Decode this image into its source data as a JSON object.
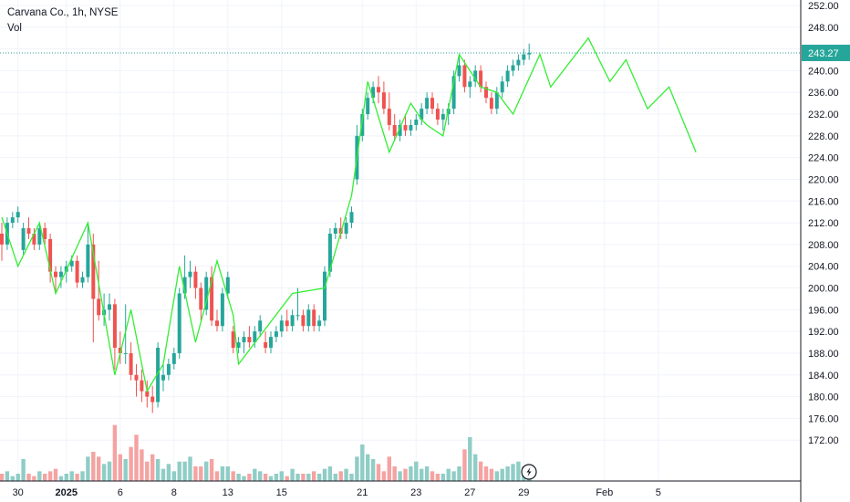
{
  "header": {
    "symbol_line": "Carvana Co., 1h, NYSE",
    "volume_label": "Vol"
  },
  "current_price": {
    "value": 243.27,
    "label": "243.27",
    "tag_color": "#26a69a"
  },
  "colors": {
    "up": "#26a69a",
    "down": "#ef5350",
    "volume_up": "#8fcdc6",
    "volume_down": "#f4a3a2",
    "projection_line": "#33ee33",
    "grid": "#f0f3fa",
    "axis": "#131722"
  },
  "icons": {
    "snapshot_marker": "lightning-icon"
  },
  "chart_data": {
    "type": "candlestick",
    "interval": "1h",
    "ylim": [
      168,
      252
    ],
    "y_ticks": [
      172,
      176,
      180,
      184,
      188,
      192,
      196,
      200,
      204,
      208,
      212,
      216,
      220,
      224,
      228,
      232,
      236,
      240,
      244,
      248,
      252
    ],
    "y_tick_labels": [
      "172.00",
      "176.00",
      "180.00",
      "184.00",
      "188.00",
      "192.00",
      "196.00",
      "200.00",
      "204.00",
      "208.00",
      "212.00",
      "216.00",
      "220.00",
      "224.00",
      "228.00",
      "232.00",
      "236.00",
      "240.00",
      "244.00",
      "248.00",
      "252.00"
    ],
    "x_labels": [
      {
        "label": "30",
        "bar": 3,
        "bold": false
      },
      {
        "label": "2025",
        "bar": 12,
        "bold": true
      },
      {
        "label": "6",
        "bar": 22,
        "bold": false
      },
      {
        "label": "8",
        "bar": 32,
        "bold": false
      },
      {
        "label": "13",
        "bar": 42,
        "bold": false
      },
      {
        "label": "15",
        "bar": 52,
        "bold": false
      },
      {
        "label": "21",
        "bar": 67,
        "bold": false
      },
      {
        "label": "23",
        "bar": 77,
        "bold": false
      },
      {
        "label": "27",
        "bar": 87,
        "bold": false
      },
      {
        "label": "29",
        "bar": 97,
        "bold": false
      },
      {
        "label": "Feb",
        "bar": 112,
        "bold": false
      },
      {
        "label": "5",
        "bar": 122,
        "bold": false
      }
    ],
    "candles": [
      [
        210,
        212,
        205,
        208
      ],
      [
        208,
        213,
        207,
        212
      ],
      [
        212,
        214,
        211,
        213
      ],
      [
        213,
        215,
        212,
        214
      ],
      [
        207,
        212,
        206,
        211
      ],
      [
        211,
        213,
        209,
        210
      ],
      [
        210,
        211,
        207,
        208
      ],
      [
        208,
        212,
        207,
        211
      ],
      [
        211,
        212,
        208,
        209
      ],
      [
        209,
        210,
        201,
        203
      ],
      [
        203,
        204,
        199,
        202
      ],
      [
        202,
        204,
        200,
        203
      ],
      [
        203,
        205,
        201,
        204
      ],
      [
        204,
        206,
        203,
        205
      ],
      [
        205,
        206,
        200,
        201
      ],
      [
        201,
        203,
        200,
        202
      ],
      [
        202,
        212,
        201,
        208
      ],
      [
        208,
        210,
        190,
        198
      ],
      [
        198,
        205,
        194,
        195
      ],
      [
        195,
        199,
        193,
        196
      ],
      [
        196,
        199,
        194,
        197
      ],
      [
        197,
        198,
        185,
        189
      ],
      [
        189,
        192,
        186,
        188
      ],
      [
        188,
        197,
        186,
        188
      ],
      [
        188,
        190,
        183,
        184
      ],
      [
        184,
        186,
        180,
        183
      ],
      [
        183,
        185,
        179,
        181
      ],
      [
        181,
        183,
        178,
        180
      ],
      [
        180,
        182,
        177,
        179
      ],
      [
        179,
        190,
        178,
        189
      ],
      [
        183,
        186,
        181,
        184
      ],
      [
        184,
        187,
        183,
        186
      ],
      [
        186,
        189,
        185,
        188
      ],
      [
        188,
        200,
        187,
        199
      ],
      [
        199,
        206,
        198,
        202
      ],
      [
        202,
        205,
        200,
        203
      ],
      [
        203,
        204,
        198,
        200
      ],
      [
        200,
        201,
        194,
        196
      ],
      [
        196,
        203,
        195,
        202
      ],
      [
        202,
        204,
        193,
        194
      ],
      [
        194,
        196,
        192,
        193
      ],
      [
        193,
        200,
        192,
        199
      ],
      [
        199,
        203,
        198,
        202
      ],
      [
        192,
        193,
        188,
        189
      ],
      [
        189,
        191,
        188,
        190
      ],
      [
        190,
        192,
        188,
        191
      ],
      [
        191,
        193,
        189,
        190
      ],
      [
        190,
        193,
        189,
        192
      ],
      [
        192,
        195,
        191,
        194
      ],
      [
        190,
        192,
        188,
        189
      ],
      [
        189,
        192,
        188,
        191
      ],
      [
        191,
        193,
        190,
        192
      ],
      [
        192,
        195,
        191,
        194
      ],
      [
        194,
        196,
        192,
        193
      ],
      [
        193,
        196,
        192,
        195
      ],
      [
        195,
        200,
        194,
        195
      ],
      [
        195,
        196,
        192,
        193
      ],
      [
        193,
        197,
        192,
        196
      ],
      [
        196,
        197,
        192,
        193
      ],
      [
        193,
        195,
        192,
        194
      ],
      [
        194,
        204,
        193,
        203
      ],
      [
        203,
        211,
        202,
        210
      ],
      [
        210,
        212,
        209,
        211
      ],
      [
        211,
        213,
        209,
        210
      ],
      [
        210,
        213,
        209,
        212
      ],
      [
        212,
        215,
        211,
        214
      ],
      [
        220,
        230,
        219,
        228
      ],
      [
        228,
        233,
        227,
        232
      ],
      [
        232,
        236,
        231,
        235
      ],
      [
        235,
        238,
        234,
        237
      ],
      [
        237,
        239,
        234,
        236
      ],
      [
        236,
        238,
        232,
        233
      ],
      [
        233,
        236,
        229,
        230
      ],
      [
        230,
        232,
        227,
        228
      ],
      [
        228,
        231,
        227,
        230
      ],
      [
        230,
        232,
        228,
        229
      ],
      [
        229,
        231,
        228,
        230
      ],
      [
        230,
        232,
        229,
        231
      ],
      [
        231,
        234,
        230,
        233
      ],
      [
        233,
        236,
        232,
        235
      ],
      [
        235,
        236,
        232,
        233
      ],
      [
        233,
        234,
        230,
        231
      ],
      [
        231,
        233,
        229,
        232
      ],
      [
        232,
        234,
        230,
        233
      ],
      [
        233,
        240,
        232,
        239
      ],
      [
        239,
        243,
        238,
        241
      ],
      [
        241,
        242,
        236,
        237
      ],
      [
        237,
        239,
        235,
        238
      ],
      [
        238,
        241,
        237,
        240
      ],
      [
        240,
        241,
        236,
        237
      ],
      [
        237,
        238,
        234,
        235
      ],
      [
        235,
        236,
        232,
        233
      ],
      [
        233,
        237,
        232,
        236
      ],
      [
        236,
        239,
        235,
        238
      ],
      [
        238,
        241,
        237,
        240
      ],
      [
        240,
        242,
        239,
        241
      ],
      [
        241,
        243,
        240,
        242
      ],
      [
        242,
        244,
        241,
        243
      ],
      [
        243,
        245,
        242,
        243.27
      ]
    ],
    "volume": [
      3,
      4,
      2,
      3,
      9,
      3,
      2,
      4,
      3,
      4,
      5,
      2,
      3,
      4,
      3,
      4,
      10,
      12,
      10,
      7,
      8,
      23,
      11,
      9,
      14,
      19,
      13,
      8,
      11,
      9,
      5,
      7,
      4,
      8,
      8,
      10,
      6,
      6,
      8,
      9,
      4,
      6,
      6,
      4,
      3,
      2,
      3,
      5,
      4,
      3,
      2,
      3,
      4,
      2,
      5,
      3,
      3,
      3,
      4,
      3,
      5,
      6,
      3,
      4,
      5,
      3,
      10,
      15,
      11,
      9,
      7,
      4,
      10,
      6,
      4,
      5,
      6,
      8,
      5,
      6,
      4,
      3,
      3,
      5,
      4,
      6,
      13,
      18,
      11,
      8,
      6,
      5,
      4,
      5,
      6,
      7,
      8,
      6,
      4
    ],
    "volume_scale_max": 60,
    "projection": [
      {
        "bar": 0,
        "price": 213
      },
      {
        "bar": 3,
        "price": 204
      },
      {
        "bar": 7,
        "price": 212
      },
      {
        "bar": 10,
        "price": 199
      },
      {
        "bar": 16,
        "price": 212
      },
      {
        "bar": 21,
        "price": 184
      },
      {
        "bar": 24,
        "price": 196
      },
      {
        "bar": 27,
        "price": 181
      },
      {
        "bar": 30,
        "price": 186
      },
      {
        "bar": 33,
        "price": 204
      },
      {
        "bar": 36,
        "price": 190
      },
      {
        "bar": 40,
        "price": 205
      },
      {
        "bar": 43,
        "price": 195
      },
      {
        "bar": 44,
        "price": 186
      },
      {
        "bar": 54,
        "price": 199
      },
      {
        "bar": 60,
        "price": 200
      },
      {
        "bar": 65,
        "price": 217
      },
      {
        "bar": 68,
        "price": 238
      },
      {
        "bar": 72,
        "price": 225
      },
      {
        "bar": 76,
        "price": 234
      },
      {
        "bar": 78,
        "price": 231
      },
      {
        "bar": 79,
        "price": 230
      },
      {
        "bar": 82,
        "price": 228
      },
      {
        "bar": 85,
        "price": 243
      },
      {
        "bar": 89,
        "price": 237
      },
      {
        "bar": 92,
        "price": 236
      },
      {
        "bar": 95,
        "price": 232
      },
      {
        "bar": 100,
        "price": 243
      },
      {
        "bar": 102,
        "price": 237
      },
      {
        "bar": 109,
        "price": 246
      },
      {
        "bar": 113,
        "price": 238
      },
      {
        "bar": 116,
        "price": 242
      },
      {
        "bar": 120,
        "price": 233
      },
      {
        "bar": 124,
        "price": 237
      },
      {
        "bar": 129,
        "price": 225
      }
    ]
  }
}
